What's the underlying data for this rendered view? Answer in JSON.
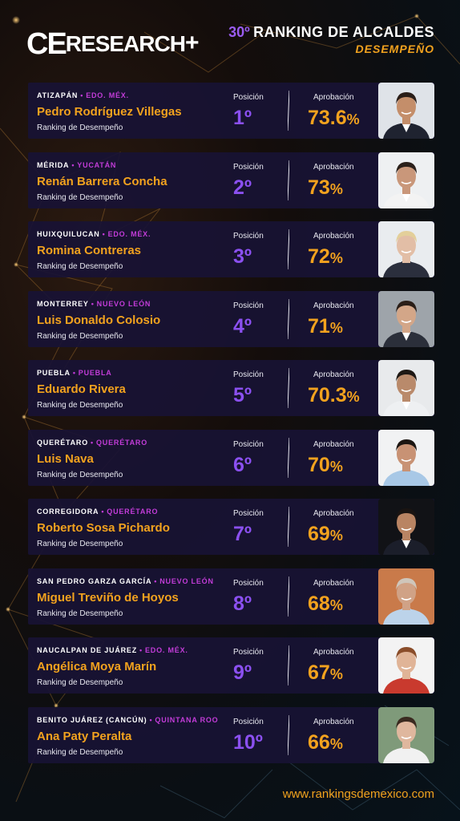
{
  "header": {
    "logo_ce": "CE",
    "logo_research": "RESEARCH",
    "logo_plus": "+",
    "title_number": "30º",
    "title_main": "RANKING DE ALCALDES",
    "title_sub": "DESEMPEÑO"
  },
  "labels": {
    "position": "Posición",
    "approval": "Aprobación",
    "ranking_subtitle": "Ranking de Desempeño"
  },
  "entries": [
    {
      "city": "ATIZAPÁN",
      "state": "EDO. MÉX.",
      "name": "Pedro Rodríguez Villegas",
      "position": "1º",
      "approval": "73.6",
      "pct": "%",
      "bg": "#dfe3e8",
      "suit": "#1f2330",
      "skin": "#c48e6a",
      "hair": "#2a1e18",
      "shirt": "#ffffff"
    },
    {
      "city": "MÉRIDA",
      "state": "YUCATÁN",
      "name": "Renán Barrera Concha",
      "position": "2º",
      "approval": "73",
      "pct": "%",
      "bg": "#eef0f2",
      "suit": "#f3f3f3",
      "skin": "#c9977a",
      "hair": "#2b211b",
      "shirt": "#ffffff"
    },
    {
      "city": "HUIXQUILUCAN",
      "state": "EDO. MÉX.",
      "name": "Romina Contreras",
      "position": "3º",
      "approval": "72",
      "pct": "%",
      "bg": "#e9ecef",
      "suit": "#2b2f3d",
      "skin": "#e2bea6",
      "hair": "#e3cf9a",
      "shirt": "#2b2f3d"
    },
    {
      "city": "MONTERREY",
      "state": "NUEVO LEÓN",
      "name": "Luis Donaldo Colosio",
      "position": "4º",
      "approval": "71",
      "pct": "%",
      "bg": "#9ea4aa",
      "suit": "#2b2f3a",
      "skin": "#d3a688",
      "hair": "#2a1e18",
      "shirt": "#ffffff"
    },
    {
      "city": "PUEBLA",
      "state": "PUEBLA",
      "name": "Eduardo Rivera",
      "position": "5º",
      "approval": "70.3",
      "pct": "%",
      "bg": "#e8eaec",
      "suit": "#eef0f2",
      "skin": "#b98a6b",
      "hair": "#1e1814",
      "shirt": "#ffffff"
    },
    {
      "city": "QUERÉTARO",
      "state": "QUERÉTARO",
      "name": "Luis Nava",
      "position": "6º",
      "approval": "70",
      "pct": "%",
      "bg": "#f1f2f3",
      "suit": "#a8c8e6",
      "skin": "#c89274",
      "hair": "#1c1612",
      "shirt": "#a8c8e6"
    },
    {
      "city": "CORREGIDORA",
      "state": "QUERÉTARO",
      "name": "Roberto Sosa Pichardo",
      "position": "7º",
      "approval": "69",
      "pct": "%",
      "bg": "#111216",
      "suit": "#1b1e2a",
      "skin": "#b98463",
      "hair": "#1a1412",
      "shirt": "#ffffff"
    },
    {
      "city": "SAN PEDRO GARZA GARCÍA",
      "state": "NUEVO LEÓN",
      "name": "Miguel Treviño de Hoyos",
      "position": "8º",
      "approval": "68",
      "pct": "%",
      "bg": "#c97a4a",
      "suit": "#bcd3ea",
      "skin": "#d0a286",
      "hair": "#cfc6bb",
      "shirt": "#bcd3ea"
    },
    {
      "city": "NAUCALPAN DE JUÁREZ",
      "state": "EDO. MÉX.",
      "name": "Angélica Moya Marín",
      "position": "9º",
      "approval": "67",
      "pct": "%",
      "bg": "#f3f3f3",
      "suit": "#c93a2e",
      "skin": "#e0b497",
      "hair": "#8a4d2a",
      "shirt": "#c93a2e"
    },
    {
      "city": "BENITO JUÁREZ (CANCÚN)",
      "state": "QUINTANA ROO",
      "name": "Ana Paty Peralta",
      "position": "10º",
      "approval": "66",
      "pct": "%",
      "bg": "#7f9a7a",
      "suit": "#f1f1f1",
      "skin": "#dfb79e",
      "hair": "#3a2a20",
      "shirt": "#f1f1f1"
    }
  ],
  "footer": {
    "url": "www.rankingsdemexico.com"
  },
  "colors": {
    "accent_orange": "#f2a21e",
    "accent_purple": "#8b50f0",
    "state_magenta": "#c23cd8",
    "card_bg": "#18123a"
  }
}
